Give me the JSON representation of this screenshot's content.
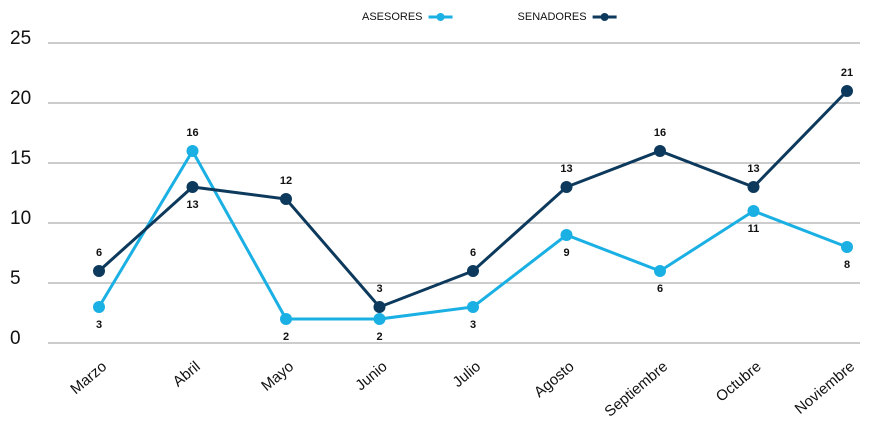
{
  "chart_data": {
    "type": "line",
    "categories": [
      "Marzo",
      "Abril",
      "Mayo",
      "Junio",
      "Julio",
      "Agosto",
      "Septiembre",
      "Octubre",
      "Noviembre"
    ],
    "series": [
      {
        "name": "ASESORES",
        "color": "#1ab0e3",
        "values": [
          3,
          16,
          2,
          2,
          3,
          9,
          6,
          11,
          8
        ]
      },
      {
        "name": "SENADORES",
        "color": "#0d3a5c",
        "values": [
          6,
          13,
          12,
          3,
          6,
          13,
          16,
          13,
          21
        ]
      }
    ],
    "ylim": [
      0,
      25
    ],
    "yticks": [
      0,
      5,
      10,
      15,
      20,
      25
    ],
    "grid": true,
    "legend": "top"
  }
}
